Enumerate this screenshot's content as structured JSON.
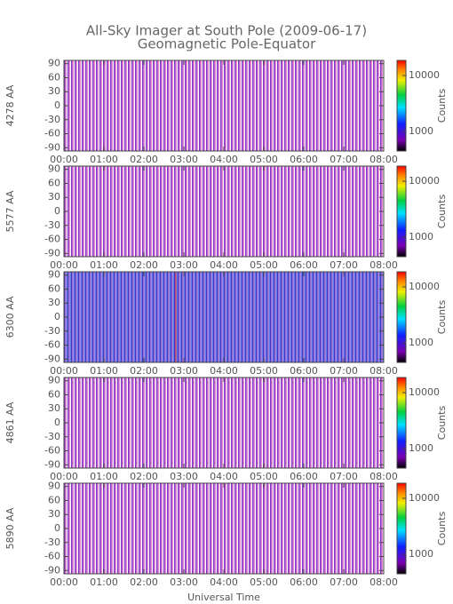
{
  "title": [
    "All-Sky Imager at South Pole (2009-06-17)",
    "Geomagnetic Pole-Equator"
  ],
  "xlabel": "Universal Time",
  "chart_data": [
    {
      "type": "heatmap",
      "ylabel": "4278 AA",
      "xlim": [
        0,
        8
      ],
      "ylim": [
        -97,
        97
      ],
      "xticks": [
        {
          "value": 0,
          "label": "00:00"
        },
        {
          "value": 1,
          "label": "01:00"
        },
        {
          "value": 2,
          "label": "02:00"
        },
        {
          "value": 3,
          "label": "03:00"
        },
        {
          "value": 4,
          "label": "04:00"
        },
        {
          "value": 5,
          "label": "05:00"
        },
        {
          "value": 6,
          "label": "06:00"
        },
        {
          "value": 7,
          "label": "07:00"
        },
        {
          "value": 8,
          "label": "08:00"
        }
      ],
      "yticks": [
        90,
        60,
        30,
        0,
        -30,
        -60,
        -90
      ],
      "colorbar": {
        "label": "Counts",
        "log": true,
        "lim": [
          450,
          18600
        ],
        "ticks": [
          1000,
          10000
        ]
      }
    },
    {
      "type": "heatmap",
      "ylabel": "5577 AA",
      "xlim": [
        0,
        8
      ],
      "ylim": [
        -97,
        97
      ],
      "xticks": [
        {
          "value": 0,
          "label": "00:00"
        },
        {
          "value": 1,
          "label": "01:00"
        },
        {
          "value": 2,
          "label": "02:00"
        },
        {
          "value": 3,
          "label": "03:00"
        },
        {
          "value": 4,
          "label": "04:00"
        },
        {
          "value": 5,
          "label": "05:00"
        },
        {
          "value": 6,
          "label": "06:00"
        },
        {
          "value": 7,
          "label": "07:00"
        },
        {
          "value": 8,
          "label": "08:00"
        }
      ],
      "yticks": [
        90,
        60,
        30,
        0,
        -30,
        -60,
        -90
      ],
      "colorbar": {
        "label": "Counts",
        "log": true,
        "lim": [
          450,
          18600
        ],
        "ticks": [
          1000,
          10000
        ]
      }
    },
    {
      "type": "heatmap",
      "ylabel": "6300 AA",
      "xlim": [
        0,
        8
      ],
      "ylim": [
        -97,
        97
      ],
      "xticks": [
        {
          "value": 0,
          "label": "00:00"
        },
        {
          "value": 1,
          "label": "01:00"
        },
        {
          "value": 2,
          "label": "02:00"
        },
        {
          "value": 3,
          "label": "03:00"
        },
        {
          "value": 4,
          "label": "04:00"
        },
        {
          "value": 5,
          "label": "05:00"
        },
        {
          "value": 6,
          "label": "06:00"
        },
        {
          "value": 7,
          "label": "07:00"
        },
        {
          "value": 8,
          "label": "08:00"
        }
      ],
      "yticks": [
        90,
        60,
        30,
        0,
        -30,
        -60,
        -90
      ],
      "colorbar": {
        "label": "Counts",
        "log": true,
        "lim": [
          450,
          18600
        ],
        "ticks": [
          1000,
          10000
        ]
      }
    },
    {
      "type": "heatmap",
      "ylabel": "4861 AA",
      "xlim": [
        0,
        8
      ],
      "ylim": [
        -97,
        97
      ],
      "xticks": [
        {
          "value": 0,
          "label": "00:00"
        },
        {
          "value": 1,
          "label": "01:00"
        },
        {
          "value": 2,
          "label": "02:00"
        },
        {
          "value": 3,
          "label": "03:00"
        },
        {
          "value": 4,
          "label": "04:00"
        },
        {
          "value": 5,
          "label": "05:00"
        },
        {
          "value": 6,
          "label": "06:00"
        },
        {
          "value": 7,
          "label": "07:00"
        },
        {
          "value": 8,
          "label": "08:00"
        }
      ],
      "yticks": [
        90,
        60,
        30,
        0,
        -30,
        -60,
        -90
      ],
      "colorbar": {
        "label": "Counts",
        "log": true,
        "lim": [
          450,
          18600
        ],
        "ticks": [
          1000,
          10000
        ]
      }
    },
    {
      "type": "heatmap",
      "ylabel": "5890 AA",
      "xlim": [
        0,
        8
      ],
      "ylim": [
        -97,
        97
      ],
      "xticks": [
        {
          "value": 0,
          "label": "00:00"
        },
        {
          "value": 1,
          "label": "01:00"
        },
        {
          "value": 2,
          "label": "02:00"
        },
        {
          "value": 3,
          "label": "03:00"
        },
        {
          "value": 4,
          "label": "04:00"
        },
        {
          "value": 5,
          "label": "05:00"
        },
        {
          "value": 6,
          "label": "06:00"
        },
        {
          "value": 7,
          "label": "07:00"
        },
        {
          "value": 8,
          "label": "08:00"
        }
      ],
      "yticks": [
        90,
        60,
        30,
        0,
        -30,
        -60,
        -90
      ],
      "colorbar": {
        "label": "Counts",
        "log": true,
        "lim": [
          450,
          18600
        ],
        "ticks": [
          1000,
          10000
        ]
      }
    }
  ]
}
